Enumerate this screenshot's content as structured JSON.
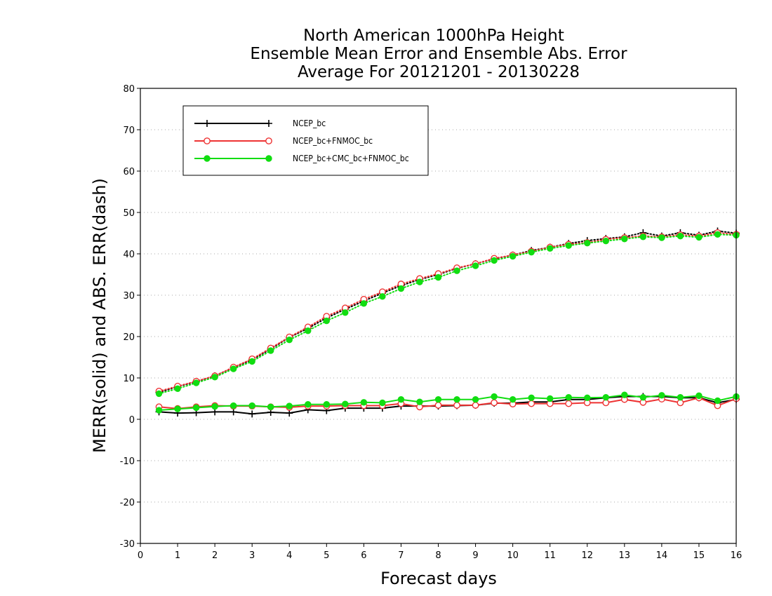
{
  "chart_data": {
    "type": "line",
    "title": [
      "North American 1000hPa Height",
      "Ensemble Mean Error and Ensemble Abs. Error",
      "Average For 20121201 - 20130228"
    ],
    "xlabel": "Forecast days",
    "ylabel": "MERR(solid) and ABS. ERR(dash)",
    "xlim": [
      0,
      16
    ],
    "ylim": [
      -30,
      80
    ],
    "xticks": [
      0,
      1,
      2,
      3,
      4,
      5,
      6,
      7,
      8,
      9,
      10,
      11,
      12,
      13,
      14,
      15,
      16
    ],
    "yticks": [
      -30,
      -20,
      -10,
      0,
      10,
      20,
      30,
      40,
      50,
      60,
      70,
      80
    ],
    "grid": "horizontal dotted",
    "legend_position": "top-left",
    "x": [
      0.5,
      1,
      1.5,
      2,
      2.5,
      3,
      3.5,
      4,
      4.5,
      5,
      5.5,
      6,
      6.5,
      7,
      7.5,
      8,
      8.5,
      9,
      9.5,
      10,
      10.5,
      11,
      11.5,
      12,
      12.5,
      13,
      13.5,
      14,
      14.5,
      15,
      15.5,
      16
    ],
    "series": [
      {
        "name": "NCEP_bc",
        "color": "#000000",
        "marker": "plus",
        "merr": [
          1.8,
          1.5,
          1.6,
          1.8,
          1.8,
          1.3,
          1.7,
          1.5,
          2.3,
          2.1,
          2.7,
          2.7,
          2.7,
          3.2,
          3.2,
          3.2,
          3.3,
          3.4,
          3.9,
          3.9,
          4.2,
          4.2,
          4.8,
          4.8,
          5.2,
          5.5,
          5.5,
          5.5,
          5.2,
          5.2,
          4.0,
          4.8
        ],
        "abs_err": [
          6.5,
          7.9,
          9.1,
          10.5,
          12.5,
          14.4,
          17.0,
          19.8,
          22.0,
          24.5,
          26.6,
          28.6,
          30.5,
          32.3,
          33.8,
          35.0,
          36.5,
          37.6,
          38.8,
          39.7,
          40.8,
          41.6,
          42.5,
          43.2,
          43.7,
          44.1,
          45.1,
          44.3,
          45.1,
          44.5,
          45.5,
          45.0
        ]
      },
      {
        "name": "NCEP_bc+FNMOC_bc",
        "color": "#ee3333",
        "marker": "open-circle",
        "merr": [
          3.0,
          2.6,
          3.0,
          3.3,
          3.2,
          3.2,
          3.0,
          2.9,
          3.2,
          3.2,
          3.3,
          3.3,
          3.3,
          3.8,
          3.0,
          3.4,
          3.4,
          3.4,
          4.0,
          3.7,
          3.8,
          3.8,
          3.8,
          4.0,
          4.0,
          4.8,
          4.1,
          4.9,
          4.0,
          5.2,
          3.3,
          5.0
        ],
        "abs_err": [
          6.8,
          8.0,
          9.2,
          10.5,
          12.6,
          14.6,
          17.2,
          19.9,
          22.3,
          24.9,
          26.9,
          29.0,
          30.8,
          32.7,
          34.0,
          35.2,
          36.6,
          37.6,
          38.9,
          39.7,
          40.6,
          41.6,
          42.3,
          42.7,
          43.5,
          43.9,
          44.3,
          44.1,
          44.6,
          44.3,
          45.1,
          44.7
        ]
      },
      {
        "name": "NCEP_bc+CMC_bc+FNMOC_bc",
        "color": "#11dd11",
        "marker": "filled-circle",
        "merr": [
          2.2,
          2.5,
          2.8,
          3.1,
          3.3,
          3.3,
          3.0,
          3.2,
          3.6,
          3.6,
          3.7,
          4.1,
          4.0,
          4.8,
          4.2,
          4.8,
          4.8,
          4.8,
          5.5,
          4.8,
          5.2,
          5.0,
          5.3,
          5.2,
          5.3,
          5.9,
          5.3,
          5.8,
          5.3,
          5.7,
          4.5,
          5.5
        ],
        "abs_err": [
          6.2,
          7.4,
          8.8,
          10.2,
          12.2,
          14.0,
          16.6,
          19.2,
          21.4,
          23.8,
          25.8,
          28.0,
          29.7,
          31.6,
          33.2,
          34.3,
          35.9,
          37.1,
          38.4,
          39.4,
          40.4,
          41.3,
          42.0,
          42.6,
          43.1,
          43.6,
          44.1,
          43.9,
          44.3,
          44.0,
          44.7,
          44.5
        ]
      }
    ]
  }
}
